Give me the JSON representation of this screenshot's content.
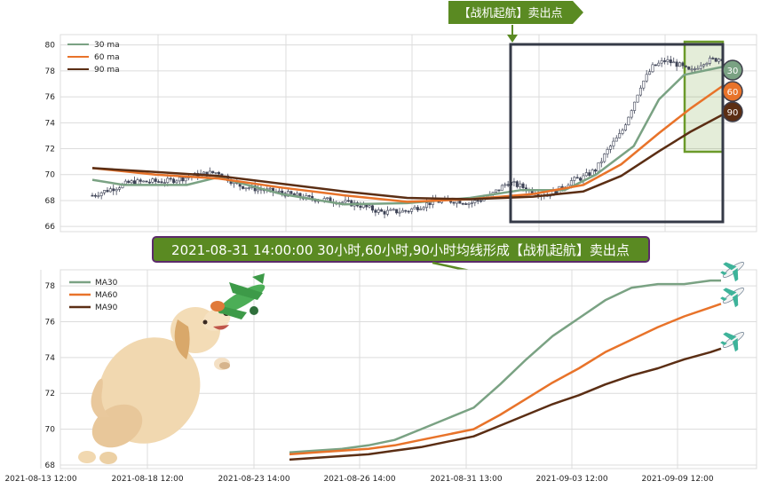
{
  "header_banner": {
    "text": "【战机起航】卖出点",
    "color": "#5a8a22"
  },
  "annotation_banner": {
    "text": "2021-08-31 14:00:00 30小时,60小时,90小时均线形成【战机起航】卖出点",
    "color": "#5a8a22",
    "border": "#5b2a6b"
  },
  "colors": {
    "ma30": "#7aa283",
    "ma60": "#e8732a",
    "ma90": "#5b2e14",
    "candle": "#3f4457",
    "box": "#353a47",
    "highlight": "#6b9a2a"
  },
  "badges": [
    {
      "label": "30",
      "fill": "#7aa283"
    },
    {
      "label": "60",
      "fill": "#e8732a"
    },
    {
      "label": "90",
      "fill": "#5b2e14"
    }
  ],
  "chart_data": [
    {
      "type": "line",
      "subtype": "candlestick_with_moving_averages",
      "legend": [
        "30 ma",
        "60 ma",
        "90 ma"
      ],
      "legend_position": "top-left",
      "grid": true,
      "ylim": [
        65.6,
        80.8
      ],
      "yticks": [
        66,
        68,
        70,
        72,
        74,
        76,
        78,
        80
      ],
      "price_path": [
        [
          0,
          68.4
        ],
        [
          6,
          69.4
        ],
        [
          12,
          69.5
        ],
        [
          17,
          70.0
        ],
        [
          20,
          70.2
        ],
        [
          23,
          69.2
        ],
        [
          26,
          68.9
        ],
        [
          30,
          68.6
        ],
        [
          34,
          68.2
        ],
        [
          38,
          68.0
        ],
        [
          42,
          67.7
        ],
        [
          46,
          67.1
        ],
        [
          50,
          67.2
        ],
        [
          54,
          67.9
        ],
        [
          58,
          68.0
        ],
        [
          60,
          67.8
        ],
        [
          63,
          68.3
        ],
        [
          66,
          69.4
        ],
        [
          68,
          69.1
        ],
        [
          70,
          68.7
        ],
        [
          72,
          68.4
        ],
        [
          74,
          68.8
        ],
        [
          76,
          69.5
        ],
        [
          78,
          69.8
        ],
        [
          80,
          70.4
        ],
        [
          82,
          72.0
        ],
        [
          84,
          73.2
        ],
        [
          86,
          75.5
        ],
        [
          87,
          76.8
        ],
        [
          89,
          78.3
        ],
        [
          91,
          78.8
        ],
        [
          93,
          78.5
        ],
        [
          95,
          77.9
        ],
        [
          97,
          78.7
        ],
        [
          100,
          79.0
        ]
      ],
      "series": [
        {
          "name": "30 ma",
          "points": [
            [
              0,
              69.6
            ],
            [
              5,
              69.2
            ],
            [
              15,
              69.2
            ],
            [
              20,
              69.8
            ],
            [
              30,
              68.5
            ],
            [
              40,
              67.7
            ],
            [
              50,
              67.8
            ],
            [
              60,
              68.2
            ],
            [
              68,
              68.8
            ],
            [
              75,
              68.8
            ],
            [
              80,
              70.0
            ],
            [
              86,
              72.2
            ],
            [
              90,
              75.8
            ],
            [
              94,
              77.7
            ],
            [
              97,
              78.0
            ],
            [
              100,
              78.3
            ]
          ]
        },
        {
          "name": "60 ma",
          "points": [
            [
              0,
              70.5
            ],
            [
              10,
              70.0
            ],
            [
              20,
              69.7
            ],
            [
              30,
              69.0
            ],
            [
              40,
              68.4
            ],
            [
              50,
              67.9
            ],
            [
              60,
              68.1
            ],
            [
              70,
              68.5
            ],
            [
              78,
              69.2
            ],
            [
              84,
              70.8
            ],
            [
              90,
              73.2
            ],
            [
              95,
              75.1
            ],
            [
              100,
              76.8
            ]
          ]
        },
        {
          "name": "90 ma",
          "points": [
            [
              0,
              70.5
            ],
            [
              10,
              70.2
            ],
            [
              20,
              69.9
            ],
            [
              30,
              69.3
            ],
            [
              40,
              68.7
            ],
            [
              50,
              68.2
            ],
            [
              60,
              68.1
            ],
            [
              70,
              68.3
            ],
            [
              78,
              68.7
            ],
            [
              84,
              69.9
            ],
            [
              90,
              71.8
            ],
            [
              95,
              73.3
            ],
            [
              100,
              74.6
            ]
          ]
        }
      ]
    },
    {
      "type": "line",
      "legend": [
        "MA30",
        "MA60",
        "MA90"
      ],
      "legend_position": "top-left",
      "grid": true,
      "ylim": [
        67.8,
        78.9
      ],
      "yticks": [
        68,
        70,
        72,
        74,
        76,
        78
      ],
      "xticks": [
        "2021-08-13 12:00",
        "2021-08-18 12:00",
        "2021-08-23 14:00",
        "2021-08-26 14:00",
        "2021-08-31 13:00",
        "2021-09-03 12:00",
        "2021-09-09 12:00"
      ],
      "series": [
        {
          "name": "MA30",
          "points": [
            [
              0,
              68.7
            ],
            [
              5,
              68.8
            ],
            [
              10,
              68.9
            ],
            [
              15,
              69.1
            ],
            [
              20,
              69.4
            ],
            [
              25,
              70.0
            ],
            [
              30,
              70.6
            ],
            [
              35,
              71.2
            ],
            [
              40,
              72.5
            ],
            [
              45,
              73.9
            ],
            [
              50,
              75.2
            ],
            [
              55,
              76.2
            ],
            [
              60,
              77.2
            ],
            [
              65,
              77.9
            ],
            [
              70,
              78.1
            ],
            [
              75,
              78.1
            ],
            [
              80,
              78.3
            ],
            [
              82,
              78.3
            ]
          ]
        },
        {
          "name": "MA60",
          "points": [
            [
              0,
              68.6
            ],
            [
              5,
              68.7
            ],
            [
              10,
              68.8
            ],
            [
              15,
              68.9
            ],
            [
              20,
              69.1
            ],
            [
              25,
              69.4
            ],
            [
              30,
              69.7
            ],
            [
              35,
              70.0
            ],
            [
              40,
              70.8
            ],
            [
              45,
              71.7
            ],
            [
              50,
              72.6
            ],
            [
              55,
              73.4
            ],
            [
              60,
              74.3
            ],
            [
              65,
              75.0
            ],
            [
              70,
              75.7
            ],
            [
              75,
              76.3
            ],
            [
              80,
              76.8
            ],
            [
              82,
              77.0
            ]
          ]
        },
        {
          "name": "MA90",
          "points": [
            [
              0,
              68.3
            ],
            [
              5,
              68.4
            ],
            [
              10,
              68.5
            ],
            [
              15,
              68.6
            ],
            [
              20,
              68.8
            ],
            [
              25,
              69.0
            ],
            [
              30,
              69.3
            ],
            [
              35,
              69.6
            ],
            [
              40,
              70.2
            ],
            [
              45,
              70.8
            ],
            [
              50,
              71.4
            ],
            [
              55,
              71.9
            ],
            [
              60,
              72.5
            ],
            [
              65,
              73.0
            ],
            [
              70,
              73.4
            ],
            [
              75,
              73.9
            ],
            [
              80,
              74.3
            ],
            [
              82,
              74.5
            ]
          ]
        }
      ]
    }
  ]
}
